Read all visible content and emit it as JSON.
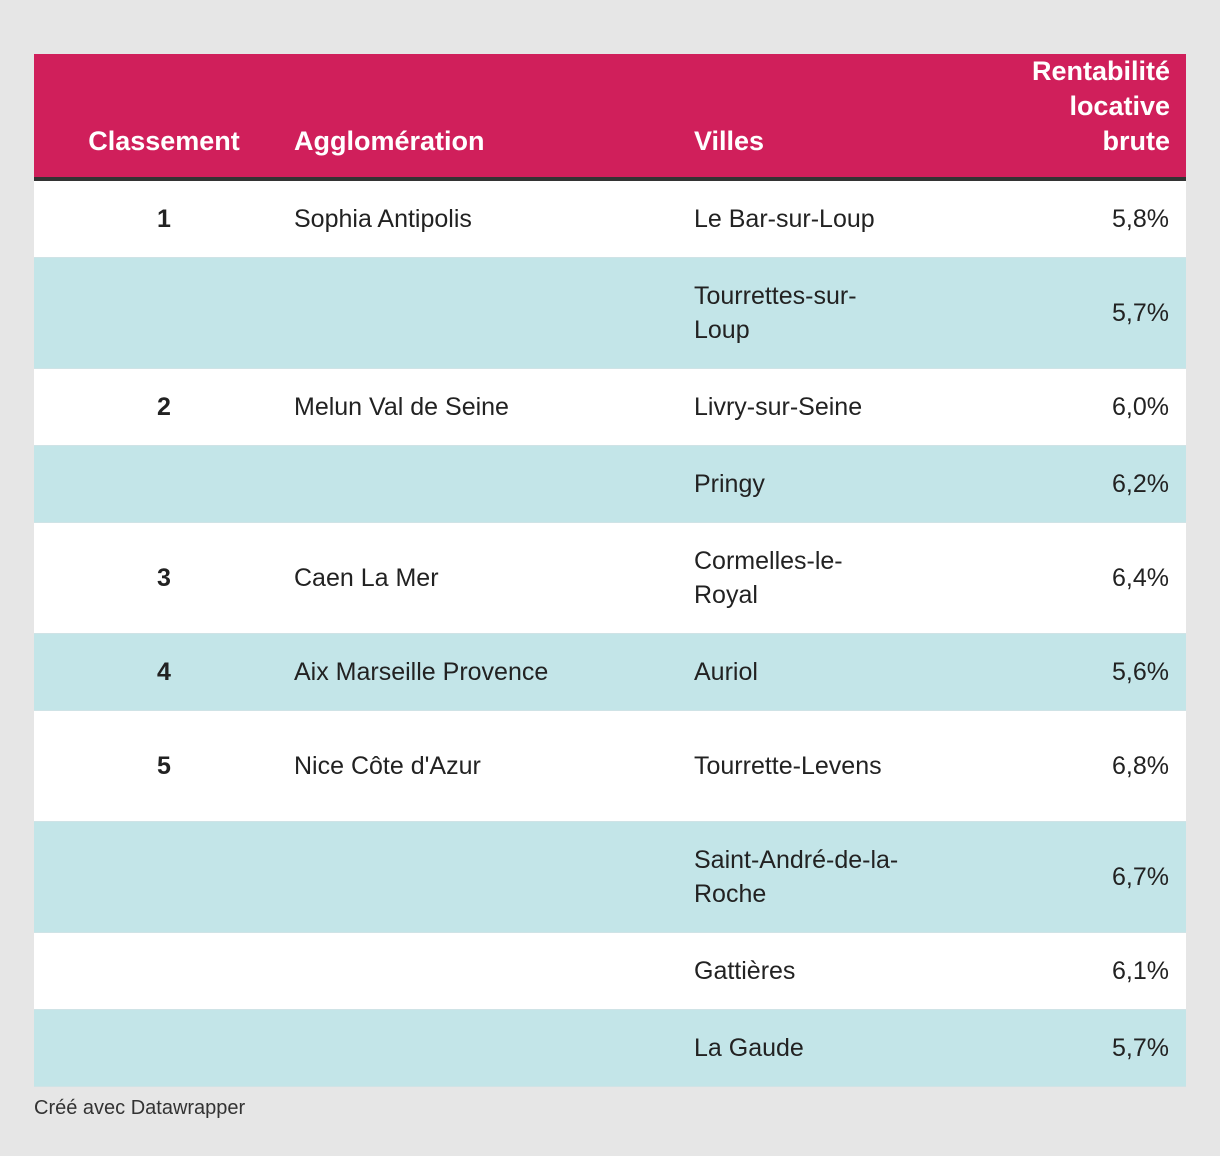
{
  "chart_data": {
    "type": "table",
    "columns": [
      "Classement",
      "Agglomération",
      "Villes",
      "Rentabilité locative brute"
    ],
    "rows": [
      {
        "rank": "1",
        "agglomeration": "Sophia Antipolis",
        "ville": "Le Bar-sur-Loup",
        "rentabilite": "5,8%"
      },
      {
        "rank": "",
        "agglomeration": "",
        "ville": "Tourrettes-sur-Loup",
        "rentabilite": "5,7%"
      },
      {
        "rank": "2",
        "agglomeration": "Melun Val de Seine",
        "ville": "Livry-sur-Seine",
        "rentabilite": "6,0%"
      },
      {
        "rank": "",
        "agglomeration": "",
        "ville": "Pringy",
        "rentabilite": "6,2%"
      },
      {
        "rank": "3",
        "agglomeration": "Caen La Mer",
        "ville": "Cormelles-le-Royal",
        "rentabilite": "6,4%"
      },
      {
        "rank": "4",
        "agglomeration": "Aix Marseille Provence",
        "ville": "Auriol",
        "rentabilite": "5,6%"
      },
      {
        "rank": "5",
        "agglomeration": "Nice Côte d'Azur",
        "ville": "Tourrette-Levens",
        "rentabilite": "6,8%"
      },
      {
        "rank": "",
        "agglomeration": "",
        "ville": "Saint-André-de-la-Roche",
        "rentabilite": "6,7%"
      },
      {
        "rank": "",
        "agglomeration": "",
        "ville": "Gattières",
        "rentabilite": "6,1%"
      },
      {
        "rank": "",
        "agglomeration": "",
        "ville": "La Gaude",
        "rentabilite": "5,7%"
      }
    ],
    "header_color": "#d01f5b",
    "row_colors": [
      "#ffffff",
      "#c3e5e8"
    ]
  },
  "footer": {
    "credit": "Créé avec Datawrapper"
  }
}
